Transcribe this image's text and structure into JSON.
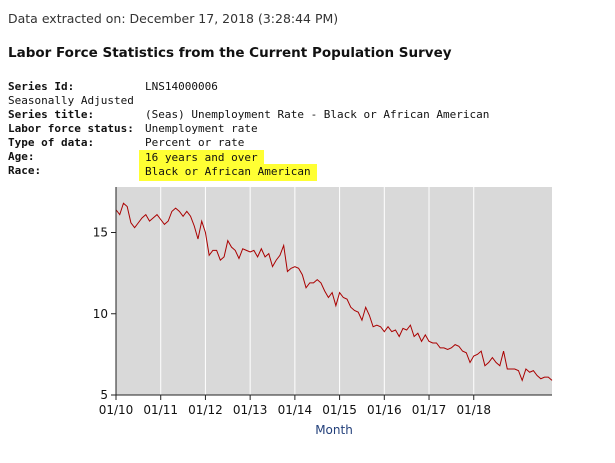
{
  "extracted": "Data extracted on: December 17, 2018 (3:28:44 PM)",
  "heading": "Labor Force Statistics from the Current Population Survey",
  "meta": {
    "series_id_label": "Series Id:",
    "series_id": "LNS14000006",
    "seasonal": "Seasonally Adjusted",
    "series_title_label": "Series title:",
    "series_title": "(Seas) Unemployment Rate - Black or African American",
    "status_label": "Labor force status:",
    "status": "Unemployment rate",
    "type_label": "Type of data:",
    "type": "Percent or rate",
    "age_label": "Age:",
    "age": "16 years and over",
    "race_label": "Race:",
    "race": "Black or African American"
  },
  "colors": {
    "plot_bg": "#d9d9d9",
    "line": "#aa0000",
    "highlight": "#ffff33",
    "axis_label": "#223f7a"
  },
  "chart_data": {
    "type": "line",
    "xlabel": "Month",
    "ylabel": "",
    "x_ticks": [
      "01/10",
      "01/11",
      "01/12",
      "01/13",
      "01/14",
      "01/15",
      "01/16",
      "01/17",
      "01/18"
    ],
    "y_ticks": [
      5,
      10,
      15
    ],
    "ylim": [
      5,
      17.8
    ],
    "x_start": "2010-01",
    "grid": "vertical",
    "series": [
      {
        "values": [
          16.4,
          16.1,
          16.8,
          16.6,
          15.6,
          15.3,
          15.6,
          15.9,
          16.1,
          15.7,
          15.9,
          16.1,
          15.8,
          15.5,
          15.7,
          16.3,
          16.5,
          16.3,
          16.0,
          16.3,
          16.0,
          15.4,
          14.6,
          15.7,
          15.0,
          13.6,
          13.9,
          13.9,
          13.3,
          13.5,
          14.5,
          14.1,
          13.9,
          13.4,
          14.0,
          13.9,
          13.8,
          13.9,
          13.5,
          14.0,
          13.5,
          13.7,
          12.9,
          13.3,
          13.6,
          14.2,
          12.6,
          12.8,
          12.9,
          12.8,
          12.4,
          11.6,
          11.9,
          11.9,
          12.1,
          11.9,
          11.4,
          11.0,
          11.3,
          10.5,
          11.3,
          11.0,
          10.9,
          10.4,
          10.2,
          10.1,
          9.6,
          10.4,
          9.9,
          9.2,
          9.3,
          9.2,
          8.9,
          9.2,
          8.9,
          9.0,
          8.6,
          9.1,
          9.0,
          9.3,
          8.6,
          8.8,
          8.3,
          8.7,
          8.3,
          8.2,
          8.2,
          7.9,
          7.9,
          7.8,
          7.9,
          8.1,
          8.0,
          7.7,
          7.6,
          7.0,
          7.4,
          7.5,
          7.7,
          6.8,
          7.0,
          7.3,
          7.0,
          6.8,
          7.7,
          6.6,
          6.6,
          6.6,
          6.5,
          5.9,
          6.6,
          6.4,
          6.5,
          6.2,
          6.0,
          6.1,
          6.1,
          5.9
        ]
      }
    ]
  }
}
